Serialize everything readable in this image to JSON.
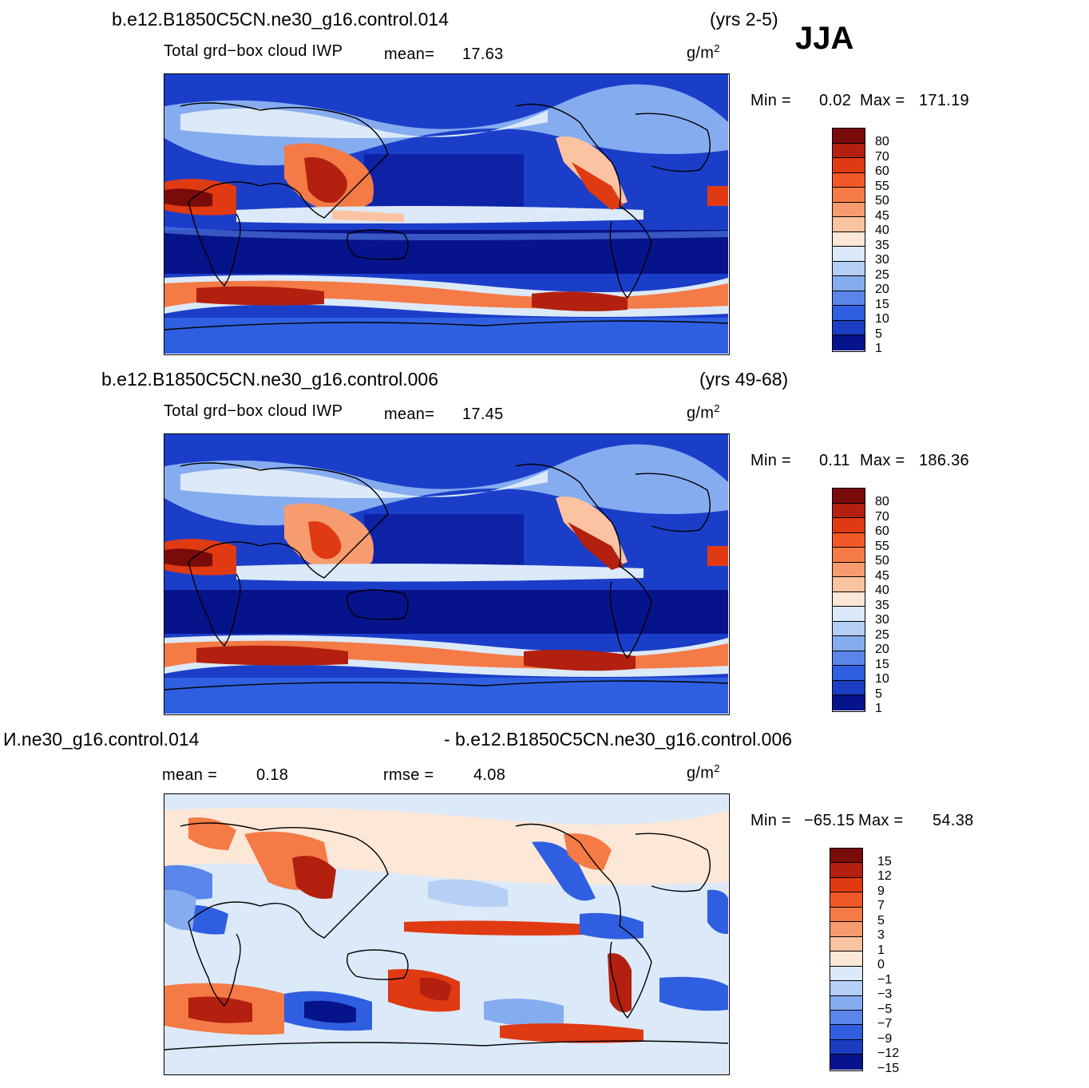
{
  "season": "JJA",
  "panels": [
    {
      "case_title": "b.e12.B1850C5CN.ne30_g16.control.014",
      "years": "(yrs 2-5)",
      "variable": "Total grd−box cloud IWP",
      "mean_label": "mean=",
      "mean_value": "17.63",
      "units": "g/m",
      "units_exp": "2",
      "min_label": "Min  =",
      "min_value": "0.02",
      "max_label": "Max  =",
      "max_value": "171.19",
      "colorbar_ticks": [
        "80",
        "70",
        "60",
        "55",
        "50",
        "45",
        "40",
        "35",
        "30",
        "25",
        "20",
        "15",
        "10",
        "5",
        "1"
      ]
    },
    {
      "case_title": "b.e12.B1850C5CN.ne30_g16.control.006",
      "years": "(yrs 49-68)",
      "variable": "Total grd−box cloud IWP",
      "mean_label": "mean=",
      "mean_value": "17.45",
      "units": "g/m",
      "units_exp": "2",
      "min_label": "Min  =",
      "min_value": "0.11",
      "max_label": "Max  =",
      "max_value": "186.36",
      "colorbar_ticks": [
        "80",
        "70",
        "60",
        "55",
        "50",
        "45",
        "40",
        "35",
        "30",
        "25",
        "20",
        "15",
        "10",
        "5",
        "1"
      ]
    },
    {
      "case_title_left": "И.ne30_g16.control.014",
      "case_title_right": "- b.e12.B1850C5CN.ne30_g16.control.006",
      "mean_label": "mean  =",
      "mean_value": "0.18",
      "rmse_label": "rmse  =",
      "rmse_value": "4.08",
      "units": "g/m",
      "units_exp": "2",
      "min_label": "Min  =",
      "min_value": "−65.15",
      "max_label": "Max  =",
      "max_value": "54.38",
      "colorbar_ticks": [
        "15",
        "12",
        "9",
        "7",
        "5",
        "3",
        "1",
        "0",
        "−1",
        "−3",
        "−5",
        "−7",
        "−9",
        "−12",
        "−15"
      ]
    }
  ],
  "colors": {
    "seq": [
      "#7a0b0b",
      "#b3200f",
      "#e03a12",
      "#f2592a",
      "#f47a46",
      "#f79c6e",
      "#fcc3a2",
      "#fde7d6",
      "#dce9f8",
      "#b6cff5",
      "#86acf0",
      "#5a86ea",
      "#2f5fe0",
      "#1a3dc2",
      "#07138a"
    ],
    "div": [
      "#7a0b0b",
      "#b3200f",
      "#e03a12",
      "#f2592a",
      "#f47a46",
      "#f79c6e",
      "#fcc3a2",
      "#fde7d6",
      "#dce9f8",
      "#b6cff5",
      "#86acf0",
      "#5a86ea",
      "#2f5fe0",
      "#1a3dc2",
      "#07138a"
    ],
    "ocean_low": "#1b3ec9",
    "ocean_mid": "#2f5fe0"
  }
}
